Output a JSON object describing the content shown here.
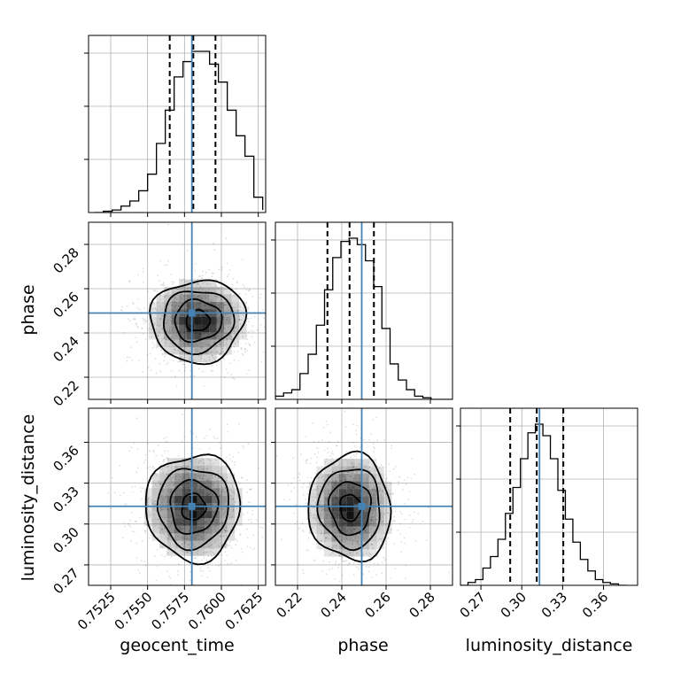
{
  "chart_data": {
    "type": "corner",
    "parameters": [
      "geocent_time",
      "phase",
      "luminosity_distance"
    ],
    "truth": {
      "geocent_time": 0.758,
      "phase": 0.249,
      "luminosity_distance": 0.313
    },
    "truth_color": "#4682b4",
    "grid": true,
    "axes": {
      "geocent_time": {
        "lim": [
          0.751,
          0.763
        ],
        "ticks": [
          "0.7525",
          "0.7550",
          "0.7575",
          "0.7600",
          "0.7625"
        ],
        "tick_values": [
          0.7525,
          0.755,
          0.7575,
          0.76,
          0.7625
        ]
      },
      "phase": {
        "lim": [
          0.21,
          0.29
        ],
        "ticks": [
          "0.22",
          "0.24",
          "0.26",
          "0.28"
        ],
        "tick_values": [
          0.22,
          0.24,
          0.26,
          0.28
        ]
      },
      "luminosity_distance": {
        "lim": [
          0.255,
          0.385
        ],
        "ticks": [
          "0.27",
          "0.30",
          "0.33",
          "0.36"
        ],
        "tick_values": [
          0.27,
          0.3,
          0.33,
          0.36
        ]
      }
    },
    "histograms": {
      "geocent_time": {
        "quantiles": [
          0.7565,
          0.7581,
          0.7596
        ],
        "bin_edges": [
          0.7514,
          0.752,
          0.7526,
          0.7532,
          0.7538,
          0.7544,
          0.755,
          0.7556,
          0.7562,
          0.7568,
          0.7574,
          0.758,
          0.7586,
          0.7592,
          0.7598,
          0.7604,
          0.761,
          0.7616,
          0.7622,
          0.7628
        ],
        "counts": [
          0,
          0.5,
          1,
          2.5,
          4.5,
          8.5,
          15,
          27,
          40,
          53,
          59,
          63,
          63,
          58,
          51,
          40,
          30,
          22,
          6,
          1
        ]
      },
      "phase": {
        "quantiles": [
          0.2335,
          0.2435,
          0.2545
        ],
        "bin_edges": [
          0.21,
          0.2137,
          0.2174,
          0.2211,
          0.2248,
          0.2285,
          0.2322,
          0.2359,
          0.2396,
          0.2433,
          0.247,
          0.2507,
          0.2544,
          0.2581,
          0.2618,
          0.2655,
          0.2692,
          0.2729,
          0.2766,
          0.2803,
          0.284,
          0.29
        ],
        "counts": [
          1,
          2,
          3,
          8,
          14,
          23,
          34,
          44,
          49,
          50,
          48,
          43,
          35,
          22,
          11,
          6,
          3,
          1,
          0.5,
          0,
          0
        ]
      },
      "luminosity_distance": {
        "quantiles": [
          0.2915,
          0.311,
          0.3305
        ],
        "bin_edges": [
          0.255,
          0.2605,
          0.266,
          0.2715,
          0.277,
          0.2825,
          0.288,
          0.2935,
          0.299,
          0.3045,
          0.31,
          0.3155,
          0.321,
          0.3265,
          0.332,
          0.3375,
          0.343,
          0.3485,
          0.354,
          0.3595,
          0.365,
          0.371,
          0.377
        ],
        "counts": [
          0,
          1,
          2,
          6,
          10,
          16,
          25,
          34,
          44,
          53,
          56,
          52,
          44,
          33,
          23,
          15,
          9,
          5,
          2,
          1,
          0.5,
          0
        ]
      }
    },
    "pairs": [
      {
        "x": "geocent_time",
        "y": "phase",
        "center": [
          0.7584,
          0.2455
        ],
        "sd": [
          0.0016,
          0.0093
        ],
        "tilt": -0.15
      },
      {
        "x": "geocent_time",
        "y": "luminosity_distance",
        "center": [
          0.7581,
          0.3125
        ],
        "sd": [
          0.0016,
          0.0195
        ],
        "tilt": 0.05
      },
      {
        "x": "phase",
        "y": "luminosity_distance",
        "center": [
          0.2438,
          0.312
        ],
        "sd": [
          0.0093,
          0.0195
        ],
        "tilt": -0.08
      }
    ],
    "contour_levels": [
      0.118,
      0.393,
      0.675,
      0.864
    ]
  },
  "labels": {
    "x_geocent_time": "geocent_time",
    "x_phase": "phase",
    "x_luminosity_distance": "luminosity_distance",
    "y_phase": "phase",
    "y_luminosity_distance": "luminosity_distance"
  }
}
